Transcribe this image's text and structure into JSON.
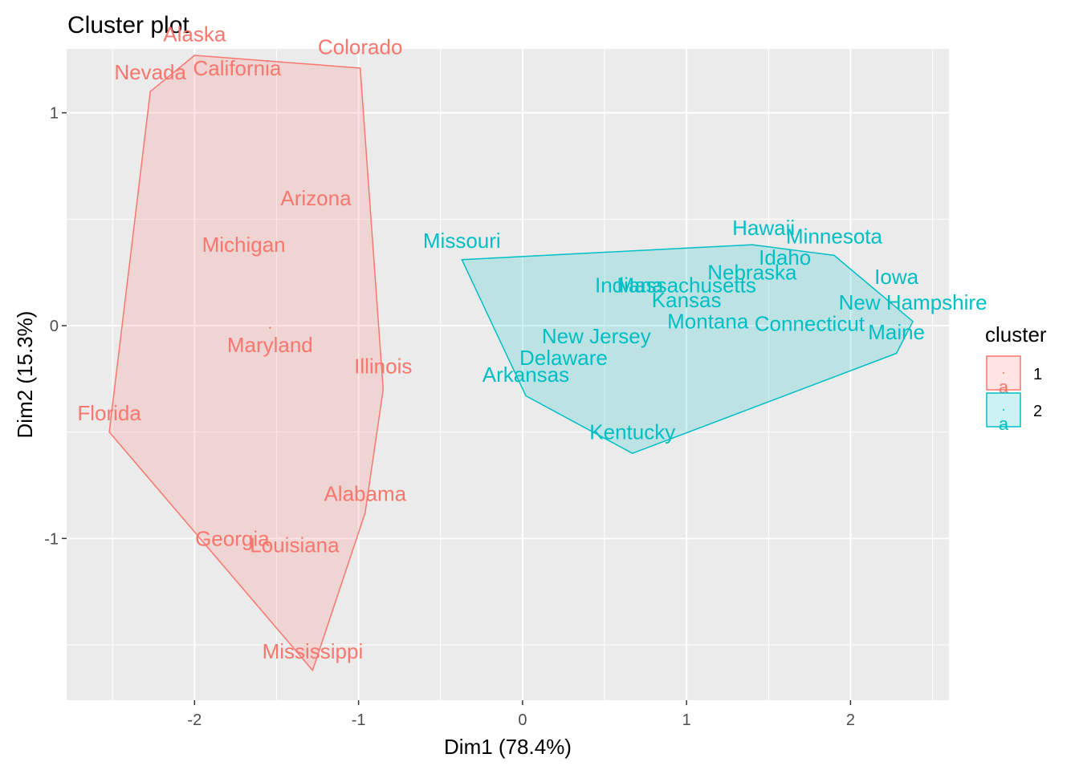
{
  "chart_data": {
    "type": "scatter",
    "title": "Cluster plot",
    "xlabel": "Dim1 (78.4%)",
    "ylabel": "Dim2 (15.3%)",
    "xlim": [
      -2.78,
      2.6
    ],
    "ylim": [
      -1.76,
      1.3
    ],
    "x_ticks": [
      -2,
      -1,
      0,
      1,
      2
    ],
    "x_tick_labels": [
      "-2",
      "-1",
      "0",
      "1",
      "2"
    ],
    "y_ticks": [
      -1,
      0,
      1
    ],
    "y_tick_labels": [
      "-1",
      "0",
      "1"
    ],
    "grid": true,
    "legend": {
      "title": "cluster",
      "position": "right",
      "glyph": "a",
      "entries": [
        {
          "label": "1",
          "color": "#F8766D"
        },
        {
          "label": "2",
          "color": "#00BFC4"
        }
      ]
    },
    "clusters": [
      {
        "name": "1",
        "color": "#F8766D",
        "fill": "#F8766D",
        "center": [
          -1.54,
          -0.01
        ],
        "hull": [
          [
            -2.0,
            1.27
          ],
          [
            -0.99,
            1.21
          ],
          [
            -0.85,
            -0.3
          ],
          [
            -0.96,
            -0.88
          ],
          [
            -1.28,
            -1.62
          ],
          [
            -2.52,
            -0.5
          ],
          [
            -2.27,
            1.1
          ]
        ],
        "points": [
          {
            "name": "Alaska",
            "x": -2.0,
            "y": 1.37
          },
          {
            "name": "Colorado",
            "x": -0.99,
            "y": 1.31
          },
          {
            "name": "Nevada",
            "x": -2.27,
            "y": 1.19
          },
          {
            "name": "California",
            "x": -1.74,
            "y": 1.21
          },
          {
            "name": "Arizona",
            "x": -1.26,
            "y": 0.6
          },
          {
            "name": "Michigan",
            "x": -1.7,
            "y": 0.38
          },
          {
            "name": "Maryland",
            "x": -1.54,
            "y": -0.09
          },
          {
            "name": "Illinois",
            "x": -0.85,
            "y": -0.19
          },
          {
            "name": "Florida",
            "x": -2.52,
            "y": -0.41
          },
          {
            "name": "Alabama",
            "x": -0.96,
            "y": -0.79
          },
          {
            "name": "Georgia",
            "x": -1.77,
            "y": -1.0
          },
          {
            "name": "Louisiana",
            "x": -1.39,
            "y": -1.03
          },
          {
            "name": "Mississippi",
            "x": -1.28,
            "y": -1.53
          }
        ]
      },
      {
        "name": "2",
        "color": "#00BFC4",
        "fill": "#00BFC4",
        "center": [
          1.04,
          0.11
        ],
        "hull": [
          [
            -0.37,
            0.31
          ],
          [
            1.4,
            0.38
          ],
          [
            1.9,
            0.33
          ],
          [
            2.38,
            0.02
          ],
          [
            2.28,
            -0.13
          ],
          [
            0.67,
            -0.6
          ],
          [
            0.02,
            -0.33
          ]
        ],
        "points": [
          {
            "name": "Missouri",
            "x": -0.37,
            "y": 0.4
          },
          {
            "name": "Hawaii",
            "x": 1.47,
            "y": 0.46
          },
          {
            "name": "Minnesota",
            "x": 1.9,
            "y": 0.42
          },
          {
            "name": "Idaho",
            "x": 1.6,
            "y": 0.32
          },
          {
            "name": "Nebraska",
            "x": 1.4,
            "y": 0.25
          },
          {
            "name": "Iowa",
            "x": 2.28,
            "y": 0.23
          },
          {
            "name": "Indiana",
            "x": 0.65,
            "y": 0.19
          },
          {
            "name": "Massachusetts",
            "x": 1.0,
            "y": 0.19
          },
          {
            "name": "Kansas",
            "x": 1.0,
            "y": 0.12
          },
          {
            "name": "New Hampshire",
            "x": 2.38,
            "y": 0.11
          },
          {
            "name": "Montana",
            "x": 1.13,
            "y": 0.02
          },
          {
            "name": "Connecticut",
            "x": 1.75,
            "y": 0.01
          },
          {
            "name": "Maine",
            "x": 2.28,
            "y": -0.03
          },
          {
            "name": "New Jersey",
            "x": 0.45,
            "y": -0.05
          },
          {
            "name": "Delaware",
            "x": 0.25,
            "y": -0.15
          },
          {
            "name": "Arkansas",
            "x": 0.02,
            "y": -0.23
          },
          {
            "name": "Kentucky",
            "x": 0.67,
            "y": -0.5
          }
        ]
      }
    ]
  }
}
